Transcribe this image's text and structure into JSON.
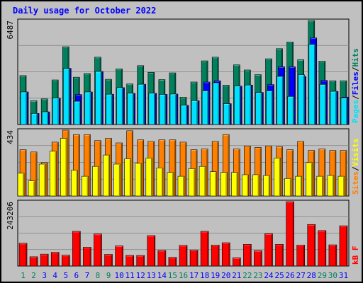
{
  "title": "Daily usage for October 2022",
  "colors": {
    "hits": "#00805c",
    "files": "#0000ff",
    "pages": "#00e0ff",
    "visits": "#ffff00",
    "sites": "#ff8000",
    "kbytes": "#ff0000",
    "title": "#0000ff",
    "weekday_label": "#0000ff",
    "weekend_label": "#00805c"
  },
  "chart_data": [
    {
      "type": "bar",
      "panel": "hits_files_pages",
      "categories": [
        "1",
        "2",
        "3",
        "4",
        "5",
        "6",
        "7",
        "8",
        "9",
        "10",
        "11",
        "12",
        "13",
        "14",
        "15",
        "16",
        "17",
        "18",
        "19",
        "20",
        "21",
        "22",
        "23",
        "24",
        "25",
        "26",
        "27",
        "28",
        "29",
        "30",
        "31"
      ],
      "weekend_days": [
        "1",
        "2",
        "8",
        "9",
        "15",
        "16",
        "22",
        "23",
        "29",
        "30"
      ],
      "ymax_label": "6487",
      "ylim": [
        0,
        6487
      ],
      "legend": [
        {
          "key": "pages",
          "label": "Pages"
        },
        {
          "key": "files",
          "label": "Files"
        },
        {
          "key": "hits",
          "label": "Hits"
        }
      ],
      "series": [
        {
          "name": "Hits",
          "key": "hits",
          "values": [
            3050,
            1480,
            1600,
            2780,
            4850,
            2950,
            3180,
            4200,
            2820,
            3470,
            2530,
            3670,
            3250,
            2800,
            3220,
            1700,
            2650,
            3970,
            4200,
            2450,
            3720,
            3400,
            3110,
            4100,
            4730,
            5150,
            4040,
            6487,
            3950,
            2730,
            2730
          ]
        },
        {
          "name": "Files",
          "key": "files",
          "values": [
            2030,
            690,
            790,
            1650,
            3500,
            1870,
            2030,
            3310,
            1890,
            2300,
            1950,
            2510,
            1950,
            1880,
            1900,
            1200,
            1490,
            2650,
            2730,
            1300,
            2400,
            2460,
            2000,
            2490,
            3600,
            3600,
            3000,
            5400,
            2750,
            2070,
            1710
          ]
        },
        {
          "name": "Pages",
          "key": "pages",
          "values": [
            2030,
            690,
            790,
            1650,
            3500,
            1450,
            2030,
            3310,
            1890,
            2300,
            1950,
            2510,
            1950,
            1880,
            1900,
            1200,
            1490,
            2100,
            2600,
            1300,
            2400,
            2460,
            2000,
            2100,
            3000,
            1750,
            3100,
            5000,
            2500,
            2070,
            1650
          ]
        }
      ]
    },
    {
      "type": "bar",
      "panel": "sites_visits",
      "categories": [
        "1",
        "2",
        "3",
        "4",
        "5",
        "6",
        "7",
        "8",
        "9",
        "10",
        "11",
        "12",
        "13",
        "14",
        "15",
        "16",
        "17",
        "18",
        "19",
        "20",
        "21",
        "22",
        "23",
        "24",
        "25",
        "26",
        "27",
        "28",
        "29",
        "30",
        "31"
      ],
      "ymax_label": "434",
      "ylim": [
        0,
        434
      ],
      "legend": [
        {
          "key": "sites",
          "label": "Sites"
        },
        {
          "key": "visits",
          "label": "Visits"
        }
      ],
      "series": [
        {
          "name": "Sites",
          "key": "sites",
          "values": [
            305,
            290,
            220,
            355,
            434,
            405,
            405,
            365,
            380,
            350,
            430,
            370,
            360,
            370,
            370,
            355,
            305,
            310,
            360,
            405,
            310,
            330,
            320,
            330,
            325,
            305,
            360,
            300,
            310,
            300,
            300
          ]
        },
        {
          "name": "Visits",
          "key": "visits",
          "values": [
            150,
            100,
            210,
            295,
            380,
            170,
            130,
            195,
            270,
            210,
            245,
            215,
            250,
            185,
            155,
            130,
            180,
            195,
            160,
            155,
            155,
            140,
            140,
            135,
            250,
            115,
            130,
            220,
            130,
            135,
            130
          ]
        }
      ]
    },
    {
      "type": "bar",
      "panel": "kbytes",
      "categories": [
        "1",
        "2",
        "3",
        "4",
        "5",
        "6",
        "7",
        "8",
        "9",
        "10",
        "11",
        "12",
        "13",
        "14",
        "15",
        "16",
        "17",
        "18",
        "19",
        "20",
        "21",
        "22",
        "23",
        "24",
        "25",
        "26",
        "27",
        "28",
        "29",
        "30",
        "31"
      ],
      "ymax_label": "243206",
      "ylim": [
        0,
        243206
      ],
      "legend": [
        {
          "key": "kbytes",
          "label": "kB F"
        }
      ],
      "series": [
        {
          "name": "kB F",
          "key": "kbytes",
          "values": [
            86000,
            35000,
            45000,
            52000,
            41000,
            131000,
            71000,
            121000,
            44000,
            76000,
            40000,
            40000,
            115000,
            59000,
            33000,
            78000,
            60000,
            131000,
            79000,
            88000,
            31000,
            82000,
            58000,
            122000,
            82000,
            243206,
            79000,
            157000,
            134000,
            80000,
            152000
          ]
        }
      ]
    }
  ]
}
